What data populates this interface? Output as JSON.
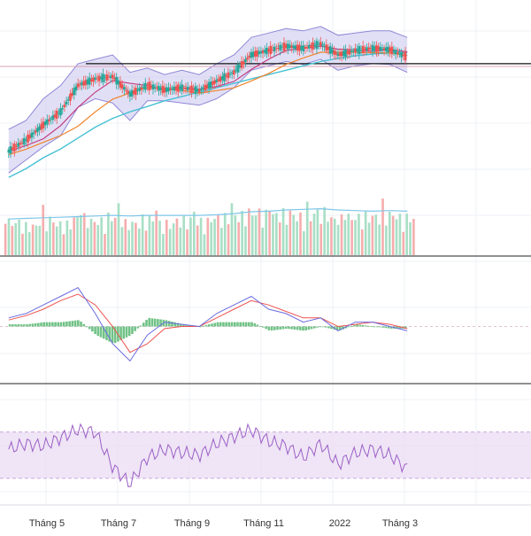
{
  "colors": {
    "background": "#ffffff",
    "grid": "#eef0f4",
    "bb_fill": "#c9c5ee",
    "bb_line": "#8e87d6",
    "ma_slow": "#47c1d4",
    "ma_mid": "#f0832a",
    "ma_fast": "#c2357b",
    "ma_fast2": "#2aa7a0",
    "candle_up": "#26a69a",
    "candle_down": "#ef5350",
    "hline": "#111111",
    "price_dotted": "#d9a3b6",
    "vol_up": "#a8dfc5",
    "vol_down": "#f6adad",
    "vol_ma": "#7fc6ea",
    "macd_line": "#6b6be0",
    "signal_line": "#ef5350",
    "hist_up": "#71c287",
    "hist_down": "#71c287",
    "rsi_line": "#9c5fc6",
    "rsi_band": "#e9dcf3",
    "rsi_band_edge": "#c9a8dc",
    "separator": "#222222"
  },
  "chart_data": [
    {
      "type": "candlestick",
      "title": "",
      "x": [
        "2021-04-01",
        "2021-04-16",
        "2021-05-01",
        "2021-05-16",
        "2021-06-01",
        "2021-06-16",
        "2021-07-01",
        "2021-07-16",
        "2021-08-01",
        "2021-08-16",
        "2021-09-01",
        "2021-09-16",
        "2021-10-01",
        "2021-10-16",
        "2021-11-01",
        "2021-11-16",
        "2021-12-01",
        "2021-12-16",
        "2022-01-01",
        "2022-01-16",
        "2022-02-01",
        "2022-02-16",
        "2022-03-01",
        "2022-03-16"
      ],
      "close": [
        1180,
        1205,
        1240,
        1270,
        1330,
        1345,
        1350,
        1310,
        1330,
        1320,
        1325,
        1318,
        1340,
        1360,
        1400,
        1410,
        1420,
        1415,
        1425,
        1400,
        1410,
        1415,
        1412,
        1395
      ],
      "bollinger_upper": [
        1230,
        1250,
        1300,
        1330,
        1380,
        1390,
        1400,
        1360,
        1370,
        1355,
        1365,
        1355,
        1380,
        1400,
        1440,
        1450,
        1460,
        1455,
        1465,
        1445,
        1450,
        1455,
        1455,
        1440
      ],
      "bollinger_lower": [
        1130,
        1160,
        1190,
        1215,
        1280,
        1300,
        1290,
        1250,
        1295,
        1295,
        1290,
        1285,
        1300,
        1325,
        1365,
        1375,
        1385,
        1378,
        1390,
        1365,
        1375,
        1380,
        1378,
        1360
      ],
      "ma_slow": [
        1120,
        1140,
        1165,
        1185,
        1210,
        1235,
        1255,
        1270,
        1282,
        1295,
        1305,
        1315,
        1325,
        1335,
        1345,
        1355,
        1365,
        1375,
        1385,
        1392,
        1398,
        1402,
        1405,
        1405
      ],
      "horizontal_level": 1380,
      "grid": true
    },
    {
      "type": "bar",
      "title": "",
      "x_labels_shared": true,
      "values": [
        62,
        55,
        66,
        58,
        70,
        64,
        72,
        60,
        68,
        59,
        66,
        63,
        70,
        74,
        80,
        76,
        78,
        72,
        80,
        68,
        71,
        73,
        76,
        70
      ],
      "ma": [
        60,
        61,
        62,
        63,
        64,
        65,
        66,
        65,
        66,
        66,
        66,
        66,
        67,
        69,
        72,
        73,
        75,
        76,
        77,
        75,
        74,
        73,
        74,
        73
      ]
    },
    {
      "type": "line",
      "title": "",
      "series": [
        {
          "values": [
            0.4,
            0.6,
            1.0,
            1.4,
            1.8,
            0.6,
            -0.8,
            -1.6,
            -0.4,
            0.2,
            0.1,
            0.0,
            0.6,
            1.0,
            1.4,
            0.8,
            0.6,
            0.2,
            0.4,
            -0.2,
            0.2,
            0.2,
            0.0,
            -0.2
          ]
        },
        {
          "values": [
            0.3,
            0.5,
            0.8,
            1.2,
            1.5,
            1.0,
            0.0,
            -1.2,
            -0.8,
            -0.1,
            0.0,
            0.0,
            0.4,
            0.8,
            1.2,
            1.0,
            0.7,
            0.4,
            0.4,
            0.0,
            0.1,
            0.2,
            0.1,
            -0.1
          ]
        }
      ],
      "histogram": [
        0.1,
        0.1,
        0.2,
        0.2,
        0.3,
        -0.4,
        -0.8,
        -0.4,
        0.4,
        0.3,
        0.1,
        0.0,
        0.2,
        0.2,
        0.2,
        -0.2,
        -0.1,
        -0.2,
        0.0,
        -0.2,
        0.1,
        0.0,
        -0.1,
        -0.1
      ]
    },
    {
      "type": "line",
      "title": "",
      "series": [
        {
          "values": [
            55,
            60,
            58,
            65,
            72,
            70,
            40,
            25,
            48,
            55,
            52,
            50,
            60,
            66,
            72,
            62,
            58,
            48,
            60,
            42,
            52,
            55,
            50,
            38
          ]
        }
      ],
      "upper_band": 70,
      "lower_band": 30,
      "ylim": [
        10,
        95
      ]
    }
  ],
  "x_axis": {
    "labels": [
      "Tháng 5",
      "Tháng 7",
      "Tháng 9",
      "Tháng 11",
      "2022",
      "Tháng 3"
    ]
  }
}
